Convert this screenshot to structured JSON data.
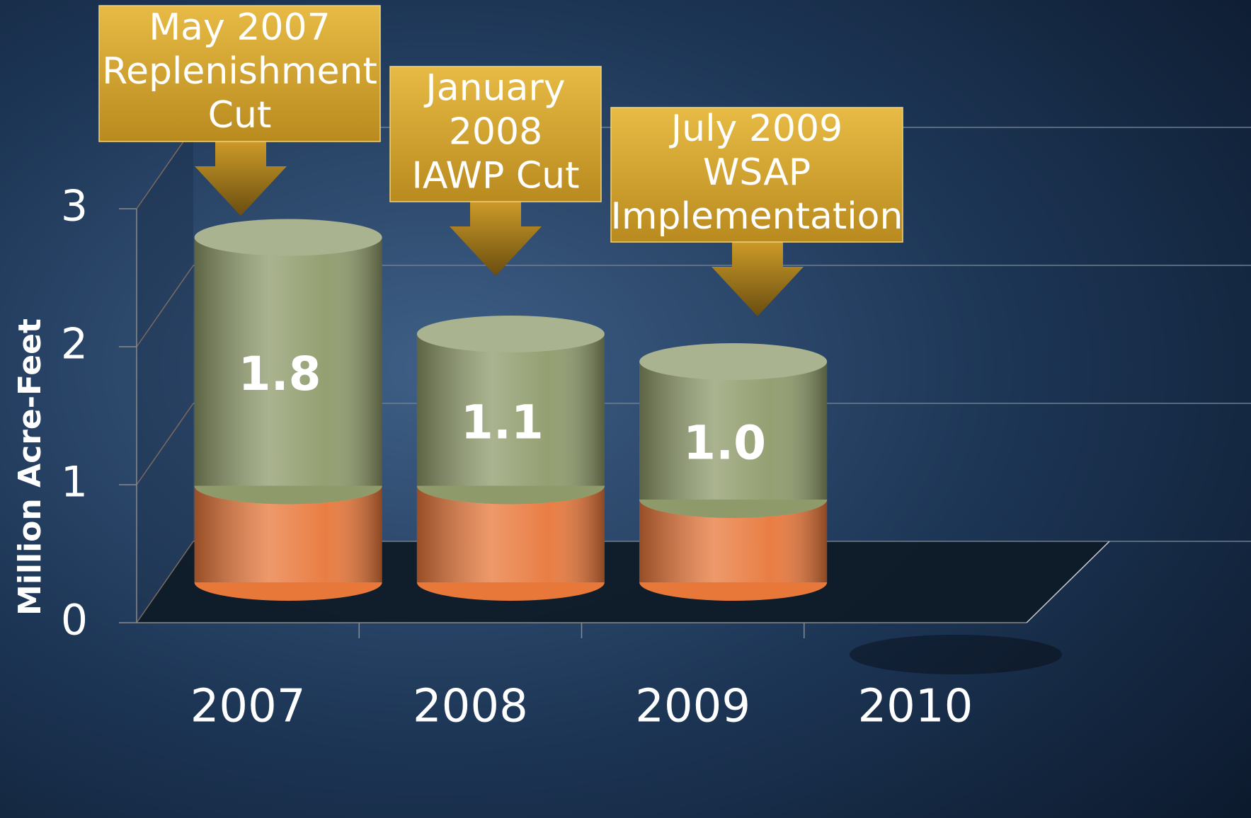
{
  "chart_data": {
    "type": "bar3d_stacked",
    "y_label": "Million Acre-Feet",
    "categories": [
      "2007",
      "2008",
      "2009",
      "2010"
    ],
    "series": [
      {
        "color": "#e8773a",
        "values": [
          0.7,
          0.7,
          0.6,
          null
        ]
      },
      {
        "color": "#8e9a6a",
        "values": [
          1.8,
          1.1,
          1.0,
          null
        ],
        "value_labels": [
          "1.8",
          "1.1",
          "1.0",
          null
        ]
      }
    ],
    "ylim": [
      0,
      3
    ],
    "yticks": [
      0,
      1,
      2,
      3
    ],
    "grid": true,
    "annotations": [
      {
        "lines": [
          "May 2007",
          "Replenishment",
          "Cut"
        ]
      },
      {
        "lines": [
          "January",
          "2008",
          "IAWP Cut"
        ]
      },
      {
        "lines": [
          "July 2009",
          "WSAP",
          "Implementation"
        ]
      }
    ]
  }
}
